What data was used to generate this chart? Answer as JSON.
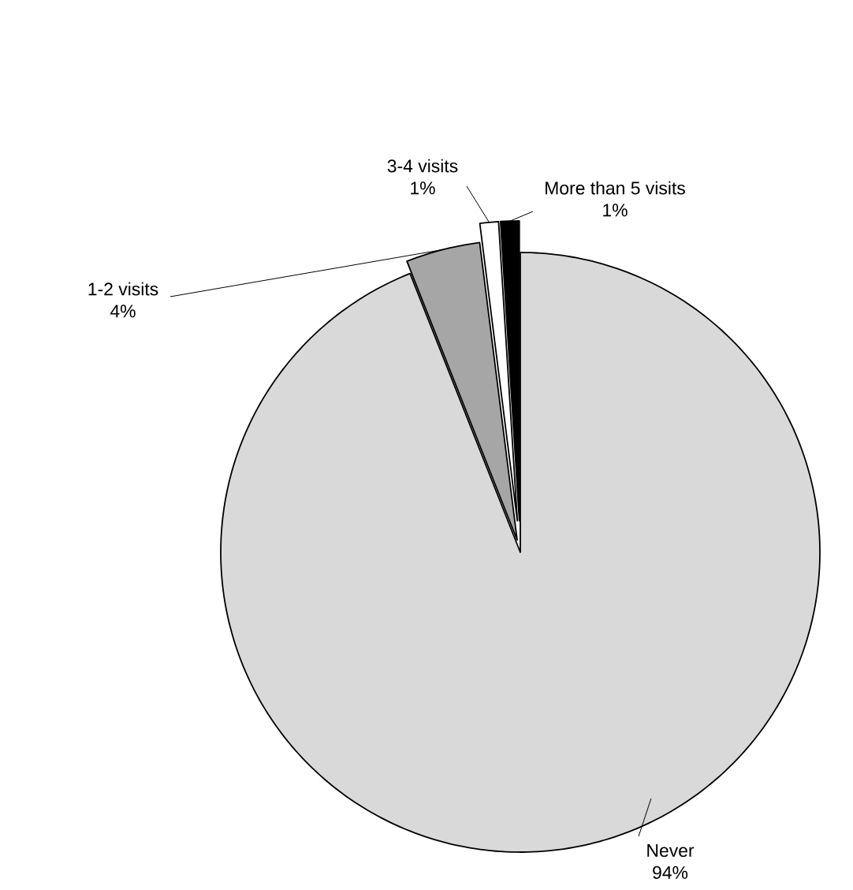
{
  "chart_data": {
    "type": "pie",
    "categories": [
      "Never",
      "1-2 visits",
      "3-4 visits",
      "More than 5 visits"
    ],
    "values": [
      94,
      4,
      1,
      1
    ],
    "value_labels": [
      "94%",
      "4%",
      "1%",
      "1%"
    ],
    "colors": [
      "#d9d9d9",
      "#a6a6a6",
      "#ffffff",
      "#000000"
    ]
  }
}
